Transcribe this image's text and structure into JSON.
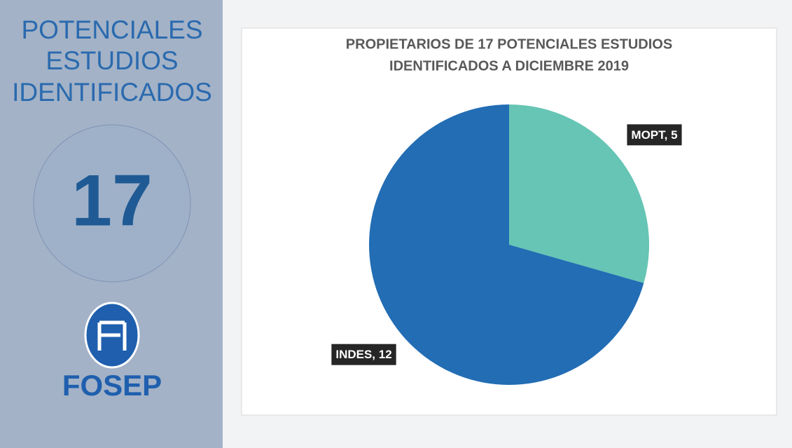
{
  "sidebar": {
    "heading": [
      "POTENCIALES",
      "ESTUDIOS",
      "IDENTIFICADOS"
    ],
    "number": 17,
    "logo_text": "FOSEP"
  },
  "chart_data": {
    "type": "pie",
    "title": [
      "PROPIETARIOS DE 17 POTENCIALES ESTUDIOS",
      "IDENTIFICADOS A DICIEMBRE 2019"
    ],
    "values": [
      5,
      12
    ],
    "value_labels": [
      "MOPT, 5",
      "INDES, 12"
    ],
    "colors": [
      "#66c5b4",
      "#226db4"
    ]
  }
}
